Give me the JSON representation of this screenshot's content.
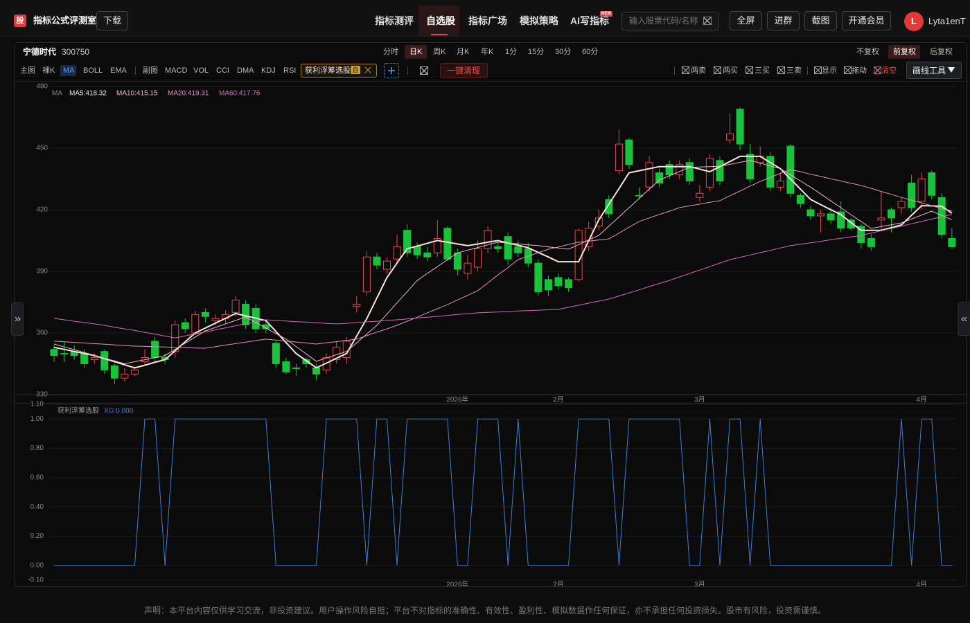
{
  "header": {
    "logo": "股",
    "title": "指标公式评测室",
    "download": "下载",
    "nav": [
      "指标测评",
      "自选股",
      "指标广场",
      "模拟策略",
      "AI写指标"
    ],
    "badge": "NEW",
    "search_placeholder": "输入股票代码/名称",
    "buttons": [
      "全屏",
      "进群",
      "截图",
      "开通会员"
    ],
    "avatar": "L",
    "user": "Lyta1enT"
  },
  "toolbar": {
    "periods": [
      "分时",
      "日K",
      "周K",
      "月K",
      "年K",
      "1分",
      "15分",
      "30分",
      "60分"
    ],
    "adjust": [
      "不复权",
      "前复权",
      "后复权"
    ],
    "main": [
      "主图",
      "裸K",
      "MA",
      "BOLL",
      "EMA"
    ],
    "sub": [
      "副图",
      "MACD",
      "VOL",
      "CCI",
      "DMA",
      "KDJ",
      "RSI"
    ],
    "tag_badge": "自",
    "clear": "一键清理",
    "tools": [
      "两卖",
      "两买",
      "三买",
      "三卖",
      "显示",
      "拖动",
      "清空"
    ],
    "draw_tools": "画线工具"
  },
  "chart_data": [
    {
      "type": "candlestick",
      "title": "宁德时代",
      "code": "300750",
      "legend_title": "MA",
      "categories": [
        null,
        null,
        null,
        null,
        null,
        null,
        null,
        null,
        null,
        null,
        null,
        null,
        null,
        null,
        null,
        null,
        null,
        null,
        null,
        null,
        null,
        null,
        null,
        null,
        null,
        null,
        null,
        null,
        null,
        null,
        null,
        null,
        null,
        null,
        null,
        null,
        null,
        null,
        null,
        null,
        "2026年",
        null,
        null,
        null,
        null,
        null,
        null,
        null,
        null,
        null,
        "2月",
        null,
        null,
        null,
        null,
        null,
        null,
        null,
        null,
        null,
        null,
        null,
        null,
        null,
        "3月",
        null,
        null,
        null,
        null,
        null,
        null,
        null,
        null,
        null,
        null,
        null,
        null,
        null,
        null,
        null,
        null,
        null,
        null,
        null,
        null,
        null,
        "4月",
        null,
        null,
        null
      ],
      "open": [
        352,
        350,
        351,
        350,
        347,
        351,
        344,
        338,
        340,
        346,
        356,
        348,
        351,
        365,
        360,
        370,
        366,
        367,
        370,
        374,
        372,
        364,
        355,
        346,
        343,
        347,
        343,
        342,
        347,
        348,
        373,
        380,
        397,
        391,
        396,
        410,
        402,
        399,
        399,
        411,
        399,
        389,
        392,
        401,
        402,
        407,
        402,
        401,
        394,
        386,
        387,
        386,
        386,
        402,
        412,
        425,
        439,
        454,
        427,
        431,
        438,
        442,
        437,
        443,
        426,
        431,
        444,
        454,
        469,
        447,
        443,
        446,
        431,
        451,
        427,
        420,
        417,
        418,
        419,
        415,
        412,
        406,
        415,
        420,
        421,
        433,
        424,
        438,
        426,
        406
      ],
      "high": [
        354,
        356,
        354,
        352,
        350,
        352,
        345,
        343,
        344,
        352,
        358,
        350,
        366,
        367,
        371,
        372,
        369,
        371,
        378,
        376,
        374,
        366,
        356,
        348,
        345,
        348,
        345,
        350,
        356,
        358,
        378,
        400,
        399,
        397,
        408,
        413,
        404,
        402,
        415,
        412,
        401,
        398,
        405,
        412,
        404,
        409,
        405,
        404,
        396,
        388,
        389,
        387,
        411,
        414,
        420,
        427,
        459,
        455,
        431,
        446,
        440,
        444,
        444,
        445,
        432,
        447,
        446,
        467,
        470,
        452,
        451,
        448,
        438,
        452,
        428,
        422,
        420,
        421,
        424,
        416,
        413,
        408,
        429,
        421,
        426,
        437,
        438,
        439,
        428,
        411
      ],
      "low": [
        346,
        346,
        347,
        343,
        345,
        340,
        335,
        336,
        339,
        344,
        346,
        345,
        348,
        360,
        359,
        365,
        364,
        365,
        368,
        362,
        360,
        360,
        343,
        340,
        339,
        343,
        337,
        340,
        345,
        345,
        370,
        378,
        391,
        389,
        394,
        397,
        396,
        395,
        397,
        395,
        388,
        386,
        390,
        399,
        399,
        393,
        397,
        392,
        378,
        378,
        381,
        380,
        385,
        400,
        410,
        416,
        437,
        440,
        425,
        429,
        431,
        435,
        435,
        432,
        424,
        429,
        432,
        452,
        449,
        433,
        441,
        429,
        429,
        426,
        421,
        415,
        409,
        413,
        409,
        410,
        401,
        400,
        410,
        409,
        418,
        419,
        420,
        425,
        406,
        401
      ],
      "close": [
        349,
        350,
        349,
        345,
        348,
        342,
        338,
        340,
        342,
        348,
        348,
        347,
        364,
        362,
        369,
        368,
        367,
        369,
        376,
        364,
        362,
        362,
        345,
        341,
        343,
        345,
        340,
        348,
        353,
        356,
        374,
        397,
        393,
        395,
        402,
        399,
        398,
        397,
        406,
        396,
        391,
        394,
        401,
        410,
        401,
        396,
        399,
        394,
        380,
        381,
        383,
        382,
        410,
        411,
        416,
        418,
        452,
        442,
        427,
        443,
        433,
        437,
        442,
        434,
        428,
        445,
        434,
        457,
        452,
        435,
        446,
        431,
        434,
        428,
        423,
        417,
        418,
        415,
        411,
        411,
        404,
        402,
        416,
        416,
        424,
        421,
        435,
        427,
        408,
        402
      ],
      "up_color": "#e5484d",
      "down_color": "#19c23b",
      "ylim": [
        330,
        480
      ],
      "yticks": [
        330,
        360,
        390,
        420,
        450,
        480
      ],
      "grid": true,
      "series": [
        {
          "name": "MA5:418.32",
          "color": "#f6e7dc",
          "values": [
            353,
            352,
            351,
            350,
            349,
            347.5,
            346,
            344.5,
            343,
            344.3,
            345.7,
            347,
            351.3,
            355.7,
            360,
            362.4,
            364.8,
            367.1,
            369.5,
            368.3,
            367.2,
            366,
            360.7,
            355.3,
            350,
            346.5,
            343,
            345.3,
            347.7,
            350,
            358.5,
            367,
            377,
            387,
            394,
            401,
            402.3,
            403.7,
            405,
            404.2,
            403.3,
            402.5,
            403.3,
            404.2,
            405,
            403.8,
            402.7,
            401.5,
            399.2,
            397,
            394.7,
            394.7,
            394.7,
            404.9,
            415,
            422.7,
            430.3,
            438,
            439,
            440,
            441,
            441,
            441,
            441,
            439.8,
            438.5,
            441,
            443.5,
            446,
            446,
            446,
            443,
            440,
            435,
            430,
            425,
            422.5,
            420,
            417.6,
            413.8,
            410,
            410,
            410,
            411.3,
            412.6,
            417.3,
            422,
            421.9,
            421.7,
            418.32
          ]
        },
        {
          "name": "MA10:415.15",
          "color": "#f2b7c6",
          "values": [
            354.6,
            353.2,
            351.9,
            350.5,
            349.1,
            347.7,
            346.4,
            345,
            346,
            347,
            348,
            349,
            352,
            355,
            358,
            361,
            362.7,
            364.4,
            366.1,
            367.8,
            365.1,
            362.4,
            359.7,
            357,
            353.4,
            349.8,
            346.2,
            347.8,
            349.4,
            351,
            355.2,
            359.5,
            363.7,
            369.2,
            374.7,
            380.1,
            385.6,
            389,
            392.3,
            395.7,
            399,
            400.3,
            401.6,
            402.9,
            404.2,
            403.8,
            403.4,
            402.9,
            402.5,
            401.9,
            401.4,
            400.8,
            403,
            405.3,
            407.5,
            412,
            416.5,
            421,
            425.5,
            430,
            434.5,
            436.5,
            438.6,
            440.6,
            440.8,
            441,
            441.2,
            442.1,
            443.1,
            444,
            442.7,
            441.3,
            440,
            437,
            434,
            431,
            427.7,
            424.3,
            421,
            417.6,
            414.3,
            410.9,
            411.8,
            412.7,
            413.6,
            415.5,
            417.4,
            419.3,
            417.2,
            415.15
          ]
        },
        {
          "name": "MA20:419.31",
          "color": "#e58fc6",
          "values": [
            356,
            355.7,
            355.4,
            355.1,
            354.8,
            354.5,
            354.2,
            353.9,
            353.6,
            353.5,
            353.3,
            353.2,
            353,
            352.9,
            352.7,
            352.6,
            353.3,
            354.1,
            354.8,
            355.5,
            356.3,
            357,
            356.5,
            356,
            355.6,
            355.1,
            354.6,
            355.2,
            355.8,
            356.4,
            357,
            358.7,
            360.4,
            362,
            363.7,
            365.7,
            367.7,
            369.8,
            371.8,
            373.8,
            376.1,
            378.3,
            380.6,
            384.4,
            388.2,
            391.9,
            395.7,
            397.4,
            399.1,
            400.8,
            401.9,
            403.1,
            404.2,
            404.7,
            405.3,
            405.8,
            408.6,
            411.5,
            414.3,
            416,
            417.7,
            419.3,
            421,
            421.9,
            422.7,
            423.6,
            424.4,
            426.8,
            429.1,
            431.5,
            433.8,
            435.7,
            437.7,
            439.6,
            438.5,
            437.3,
            436.2,
            435.1,
            434,
            432.9,
            431.8,
            430.4,
            428.9,
            427.5,
            426,
            424.7,
            423.3,
            422,
            420.6,
            419.31
          ]
        },
        {
          "name": "MA60:417.76",
          "color": "#d46abd",
          "values": [
            367.1,
            366.4,
            365.7,
            365.1,
            364.4,
            363.7,
            362.8,
            362,
            361.2,
            360.3,
            359.4,
            358.5,
            357.6,
            358.6,
            359.6,
            360.5,
            361.5,
            362.5,
            363.5,
            364.4,
            365.4,
            366.4,
            366.1,
            365.8,
            365.5,
            365.3,
            365,
            364.7,
            364.4,
            364.7,
            365.1,
            365.4,
            365.7,
            366.1,
            366.4,
            366.8,
            367.3,
            367.7,
            368.1,
            368.5,
            369,
            369.4,
            369.8,
            370,
            370.2,
            370.4,
            370.7,
            370.9,
            371.1,
            371.3,
            371.5,
            372.5,
            373.5,
            374.5,
            375.5,
            376.5,
            378,
            379.5,
            381,
            382.6,
            384.1,
            385.6,
            387.3,
            389,
            390.6,
            392.3,
            394,
            395.7,
            396.8,
            398,
            399.1,
            400.2,
            401.4,
            402.5,
            403.2,
            403.9,
            404.6,
            405.4,
            406.1,
            406.8,
            407.5,
            408.6,
            409.8,
            410.9,
            412,
            413.2,
            414.3,
            415.5,
            416.6,
            417.76
          ]
        }
      ]
    },
    {
      "type": "line",
      "title": "获利浮筹选股",
      "ylim": [
        -0.1,
        1.1
      ],
      "yticks": [
        {
          "value": 1.1,
          "label": "1.10"
        },
        {
          "value": 1,
          "label": "1.00"
        },
        {
          "value": 0.8,
          "label": "0.80"
        },
        {
          "value": 0.6,
          "label": "0.60"
        },
        {
          "value": 0.4,
          "label": "0.40"
        },
        {
          "value": 0.2,
          "label": "0.20"
        },
        {
          "value": 0,
          "label": "0.00"
        },
        {
          "value": -0.1,
          "label": "-0.10"
        }
      ],
      "grid": true,
      "series": [
        {
          "name": "XG:0.000",
          "color": "#3b7fd6",
          "values": [
            0,
            0,
            0,
            0,
            0,
            0,
            0,
            0,
            0,
            1,
            1,
            0,
            1,
            1,
            1,
            1,
            1,
            1,
            1,
            1,
            1,
            1,
            0,
            0,
            0,
            0,
            0,
            1,
            1,
            1,
            1,
            0,
            1,
            1,
            0,
            1,
            1,
            1,
            1,
            1,
            0,
            0,
            1,
            1,
            1,
            0,
            1,
            0,
            0,
            0,
            0,
            0,
            1,
            1,
            1,
            1,
            0,
            1,
            1,
            1,
            1,
            1,
            1,
            0,
            0,
            1,
            0,
            1,
            1,
            0,
            1,
            0,
            0,
            0,
            0,
            0,
            0,
            0,
            0,
            0,
            0,
            0,
            0,
            0,
            1,
            0,
            1,
            1,
            0,
            0
          ]
        }
      ]
    }
  ],
  "footer": "声明：本平台内容仅供学习交流，非投资建议。用户操作风险自担；平台不对指标的准确性、有效性、盈利性、模拟数据作任何保证，亦不承担任何投资损失。股市有风险，投资需谨慎。"
}
